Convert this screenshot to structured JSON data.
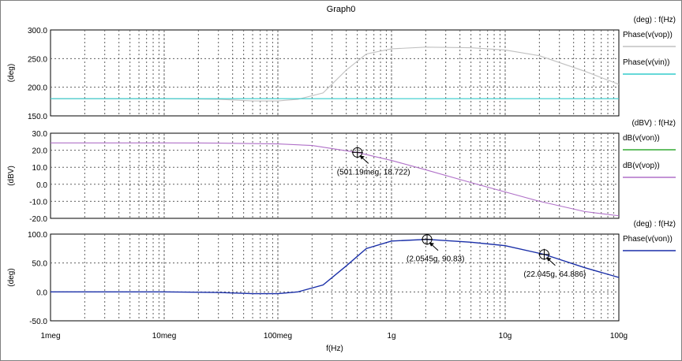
{
  "window": {
    "title": "Graph0"
  },
  "colors": {
    "phase_vop_top": "#c0c0c0",
    "phase_vin": "#33cccc",
    "db_von": "#33aa33",
    "db_vop": "#b070c8",
    "phase_von": "#1a2fa8",
    "grid": "#606060",
    "frame": "#000000"
  },
  "x_axis": {
    "label": "f(Hz)",
    "scale": "log",
    "range": [
      1000000.0,
      100000000000.0
    ],
    "tick_labels": [
      "1meg",
      "10meg",
      "100meg",
      "1g",
      "10g",
      "100g"
    ]
  },
  "chart_data": [
    {
      "type": "line",
      "panel": "top",
      "ylabel": "(deg)",
      "ylim": [
        150,
        300
      ],
      "y_ticks": [
        "300.0",
        "250.0",
        "200.0",
        "150.0"
      ],
      "legend_header": "(deg) : f(Hz)",
      "x_scale": "log",
      "series": [
        {
          "name": "Phase(v(vop))",
          "color_key": "phase_vop_top",
          "points": [
            [
              1000000.0,
              180
            ],
            [
              10000000.0,
              180
            ],
            [
              30000000.0,
              179
            ],
            [
              60000000.0,
              176
            ],
            [
              100000000.0,
              176
            ],
            [
              150000000.0,
              179
            ],
            [
              250000000.0,
              190
            ],
            [
              400000000.0,
              230
            ],
            [
              600000000.0,
              258
            ],
            [
              1000000000.0,
              267
            ],
            [
              2000000000.0,
              270
            ],
            [
              5000000000.0,
              269
            ],
            [
              10000000000.0,
              265
            ],
            [
              20000000000.0,
              255
            ],
            [
              50000000000.0,
              228
            ],
            [
              100000000000.0,
              205
            ]
          ]
        },
        {
          "name": "Phase(v(vin))",
          "color_key": "phase_vin",
          "points": [
            [
              1000000.0,
              180
            ],
            [
              100000000000.0,
              180
            ]
          ]
        }
      ]
    },
    {
      "type": "line",
      "panel": "middle",
      "ylabel": "(dBV)",
      "ylim": [
        -20,
        30
      ],
      "y_ticks": [
        "30.0",
        "20.0",
        "10.0",
        "0.0",
        "-10.0",
        "-20.0"
      ],
      "legend_header": "(dBV) : f(Hz)",
      "x_scale": "log",
      "series": [
        {
          "name": "dB(v(von))",
          "color_key": "db_von",
          "points": []
        },
        {
          "name": "dB(v(vop))",
          "color_key": "db_vop",
          "points": [
            [
              1000000.0,
              24.3
            ],
            [
              10000000.0,
              24.3
            ],
            [
              30000000.0,
              24.2
            ],
            [
              100000000.0,
              23.7
            ],
            [
              200000000.0,
              22.8
            ],
            [
              500000000.0,
              18.7
            ],
            [
              1000000000.0,
              14
            ],
            [
              2000000000.0,
              8.5
            ],
            [
              5000000000.0,
              1
            ],
            [
              10000000000.0,
              -4.5
            ],
            [
              20000000000.0,
              -10
            ],
            [
              50000000000.0,
              -16
            ],
            [
              100000000000.0,
              -18.5
            ]
          ]
        }
      ],
      "annotations": [
        {
          "text": "(501.19meg, 18.722)",
          "x": 501190000.0,
          "y": 18.722
        }
      ]
    },
    {
      "type": "line",
      "panel": "bottom",
      "ylabel": "(deg)",
      "ylim": [
        -50,
        100
      ],
      "y_ticks": [
        "100.0",
        "50.0",
        "0.0",
        "-50.0"
      ],
      "legend_header": "(deg) : f(Hz)",
      "x_scale": "log",
      "series": [
        {
          "name": "Phase(v(von))",
          "color_key": "phase_von",
          "points": [
            [
              1000000.0,
              0
            ],
            [
              10000000.0,
              0
            ],
            [
              30000000.0,
              -1
            ],
            [
              60000000.0,
              -3
            ],
            [
              100000000.0,
              -3
            ],
            [
              150000000.0,
              0
            ],
            [
              250000000.0,
              12
            ],
            [
              400000000.0,
              45
            ],
            [
              600000000.0,
              75
            ],
            [
              1000000000.0,
              88
            ],
            [
              2054500000.0,
              90.83
            ],
            [
              5000000000.0,
              86
            ],
            [
              10000000000.0,
              80
            ],
            [
              22045000000.0,
              64.886
            ],
            [
              50000000000.0,
              42
            ],
            [
              100000000000.0,
              25
            ]
          ]
        }
      ],
      "annotations": [
        {
          "text": "(2.0545g, 90.83)",
          "x": 2054500000.0,
          "y": 90.83
        },
        {
          "text": "(22.045g, 64.886)",
          "x": 22045000000.0,
          "y": 64.886
        }
      ]
    }
  ]
}
